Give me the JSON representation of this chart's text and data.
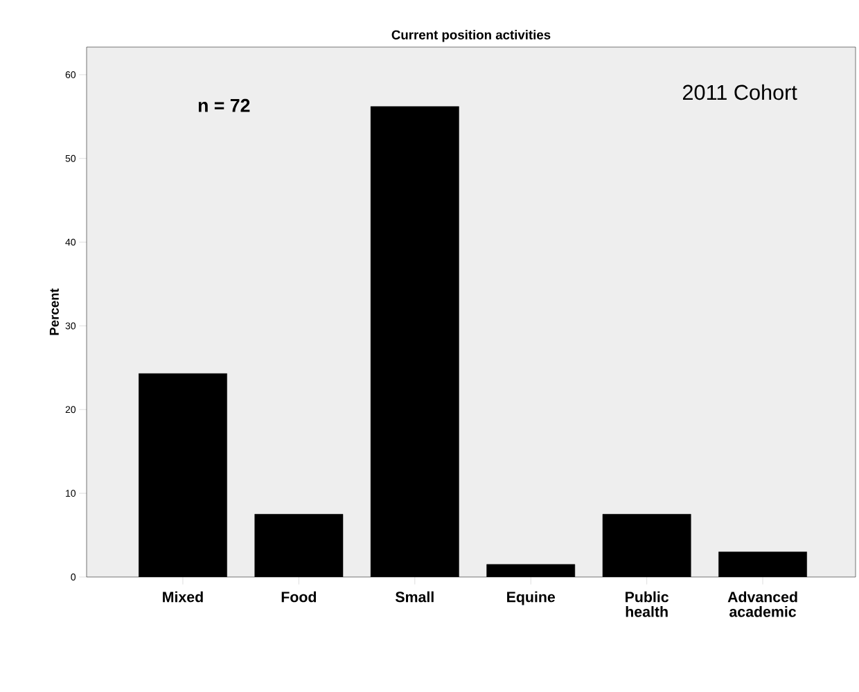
{
  "chart_data": {
    "type": "bar",
    "title": "Current position activities",
    "ylabel": "Percent",
    "categories": [
      "Mixed",
      "Food",
      "Small",
      "Equine",
      "Public health",
      "Advanced academic"
    ],
    "values": [
      24.3,
      7.5,
      56.2,
      1.5,
      7.5,
      3.0
    ],
    "color": "#000000",
    "ylim": [
      0,
      63.3
    ],
    "yticks": [
      0,
      10,
      20,
      30,
      40,
      50,
      60
    ],
    "grid": false,
    "annotations": [
      "n = 72",
      "2011 Cohort"
    ]
  }
}
